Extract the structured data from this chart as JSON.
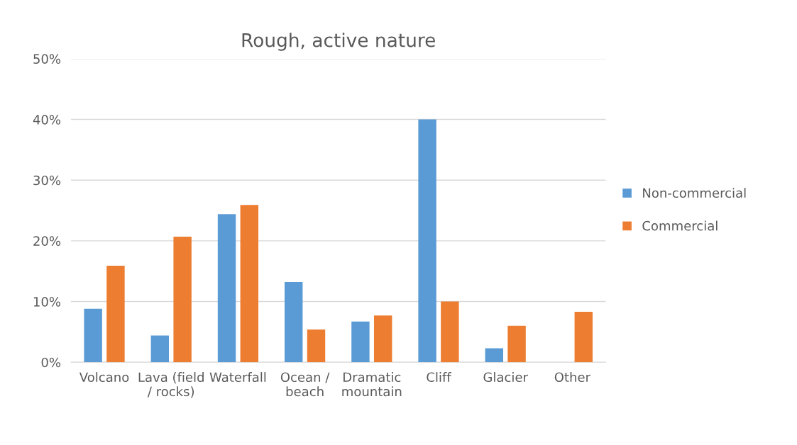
{
  "chart_data": {
    "type": "bar",
    "title": "Rough, active nature",
    "categories": [
      "Volcano",
      "Lava (field / rocks)",
      "Waterfall",
      "Ocean / beach",
      "Dramatic mountain",
      "Cliff",
      "Glacier",
      "Other"
    ],
    "series": [
      {
        "name": "Non-commercial",
        "color": "#5b9bd5",
        "values": [
          8.8,
          4.4,
          24.4,
          13.2,
          6.7,
          40,
          2.3,
          null
        ]
      },
      {
        "name": "Commercial",
        "color": "#ed7d31",
        "values": [
          15.9,
          20.7,
          25.9,
          5.4,
          7.7,
          10,
          6.0,
          8.3
        ]
      }
    ],
    "ylim": [
      0,
      50
    ],
    "yticks": [
      {
        "value": 0,
        "label": "0%"
      },
      {
        "value": 10,
        "label": "10%"
      },
      {
        "value": 20,
        "label": "20%"
      },
      {
        "value": 30,
        "label": "30%"
      },
      {
        "value": 40,
        "label": "40%"
      },
      {
        "value": 50,
        "label": "50%"
      }
    ],
    "grid": "y",
    "legend": "right"
  }
}
